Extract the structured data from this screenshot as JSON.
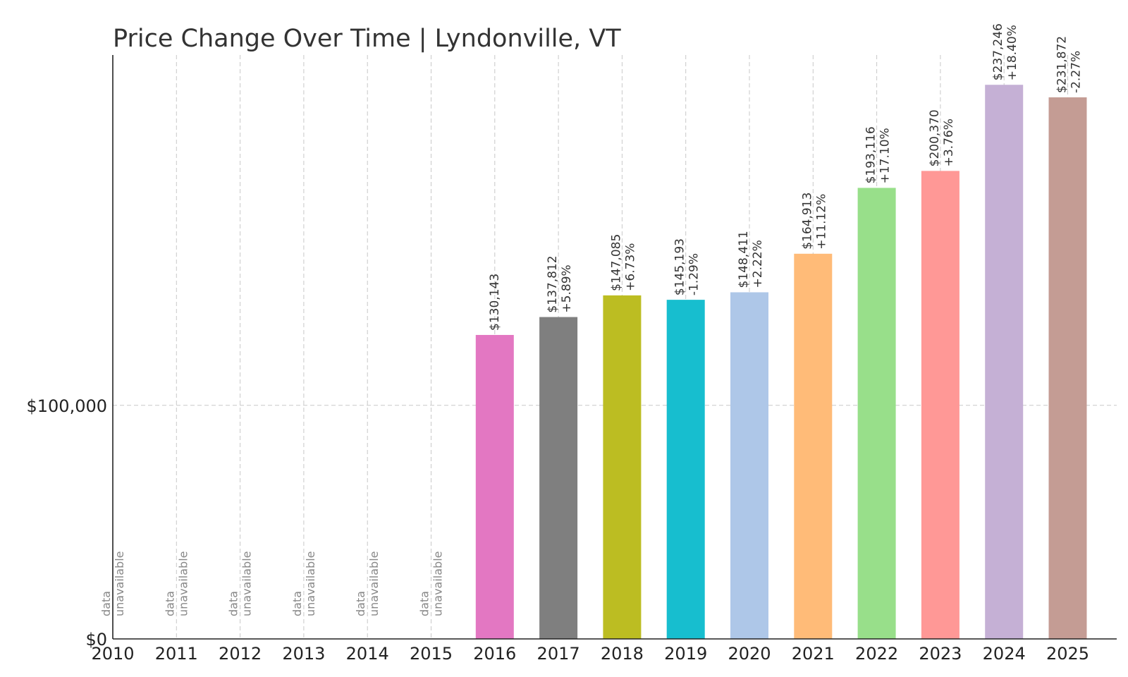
{
  "chart_data": {
    "type": "bar",
    "title": "Price Change Over Time | Lyndonville, VT",
    "xlabel": "",
    "ylabel": "",
    "categories": [
      "2010",
      "2011",
      "2012",
      "2013",
      "2014",
      "2015",
      "2016",
      "2017",
      "2018",
      "2019",
      "2020",
      "2021",
      "2022",
      "2023",
      "2024",
      "2025"
    ],
    "values": [
      null,
      null,
      null,
      null,
      null,
      null,
      130143,
      137812,
      147085,
      145193,
      148411,
      164913,
      193116,
      200370,
      237246,
      231872
    ],
    "value_labels": [
      "",
      "",
      "",
      "",
      "",
      "",
      "$130,143",
      "$137,812",
      "$147,085",
      "$145,193",
      "$148,411",
      "$164,913",
      "$193,116",
      "$200,370",
      "$237,246",
      "$231,872"
    ],
    "change_labels": [
      "",
      "",
      "",
      "",
      "",
      "",
      "",
      "+5.89%",
      "+6.73%",
      "-1.29%",
      "+2.22%",
      "+11.12%",
      "+17.10%",
      "+3.76%",
      "+18.40%",
      "-2.27%"
    ],
    "unavailable_label": [
      "data",
      "unavailable"
    ],
    "colors": [
      "#1f77b4",
      "#ff7f0e",
      "#2ca02c",
      "#d62728",
      "#9467bd",
      "#8c564b",
      "#e377c2",
      "#7f7f7f",
      "#bcbd22",
      "#17becf",
      "#aec7e8",
      "#ffbb78",
      "#98df8a",
      "#ff9896",
      "#c5b0d5",
      "#c49c94"
    ],
    "y_ticks": [
      0,
      100000
    ],
    "y_tick_labels": [
      "$0",
      "$100,000"
    ],
    "ylim": [
      0,
      250000
    ],
    "grid": true
  }
}
